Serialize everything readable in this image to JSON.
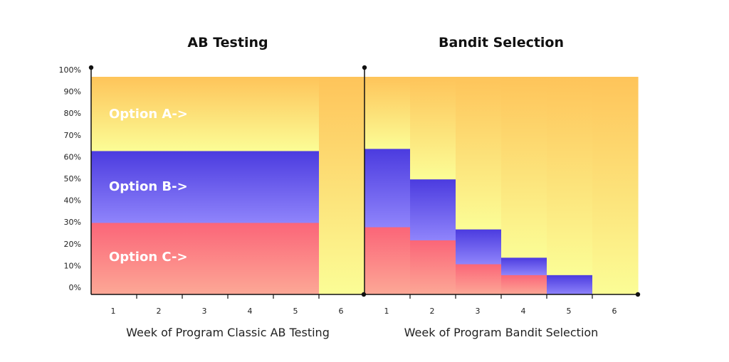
{
  "chart_data": [
    {
      "type": "area",
      "title": "AB Testing",
      "xlabel": "Week of Program Classic AB Testing",
      "ylabel": "",
      "categories": [
        "1",
        "2",
        "3",
        "4",
        "5",
        "6"
      ],
      "ylim": [
        0,
        100
      ],
      "yticks": [
        "0%",
        "10%",
        "20%",
        "30%",
        "40%",
        "50%",
        "60%",
        "70%",
        "80%",
        "90%",
        "100%"
      ],
      "series": [
        {
          "name": "Option C->",
          "values": [
            33,
            33,
            33,
            33,
            33,
            0
          ]
        },
        {
          "name": "Option B->",
          "values": [
            33,
            33,
            33,
            33,
            33,
            0
          ]
        },
        {
          "name": "Option A->",
          "values": [
            34,
            34,
            34,
            34,
            34,
            100
          ]
        }
      ]
    },
    {
      "type": "area",
      "title": "Bandit Selection",
      "xlabel": "Week of Program Bandit Selection",
      "ylabel": "",
      "categories": [
        "1",
        "2",
        "3",
        "4",
        "5",
        "6"
      ],
      "ylim": [
        0,
        100
      ],
      "series": [
        {
          "name": "Option C",
          "values": [
            31,
            25,
            14,
            9,
            0,
            0
          ]
        },
        {
          "name": "Option B",
          "values": [
            36,
            28,
            16,
            8,
            9,
            0
          ]
        },
        {
          "name": "Option A",
          "values": [
            33,
            47,
            70,
            83,
            91,
            100
          ]
        }
      ]
    }
  ],
  "colors": {
    "option_a_top": "#FEC45A",
    "option_a_bottom": "#FBFD96",
    "option_b_top": "#4B3BDF",
    "option_b_bottom": "#8F84FB",
    "option_c_top": "#FB6578",
    "option_c_bottom": "#FCA896"
  }
}
